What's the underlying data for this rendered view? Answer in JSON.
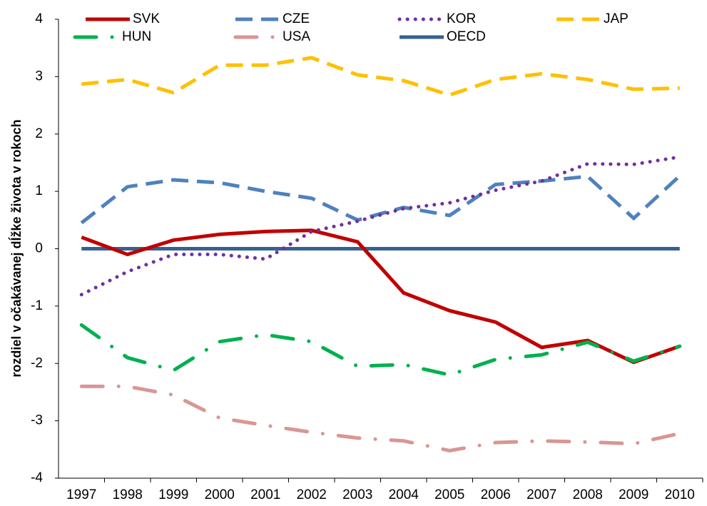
{
  "chart_data": {
    "type": "line",
    "y_label": "rozdiel v očakávanej dĺžke života v rokoch",
    "categories": [
      "1997",
      "1998",
      "1999",
      "2000",
      "2001",
      "2002",
      "2003",
      "2004",
      "2005",
      "2006",
      "2007",
      "2008",
      "2009",
      "2010"
    ],
    "ylim": [
      -4,
      4
    ],
    "yticks": [
      -4,
      -3,
      -2,
      -1,
      0,
      1,
      2,
      3,
      4
    ],
    "grid": false,
    "series": [
      {
        "name": "SVK",
        "color": "#c00000",
        "dash": "solid",
        "values": [
          0.2,
          -0.1,
          0.15,
          0.25,
          0.3,
          0.32,
          0.12,
          -0.77,
          -1.08,
          -1.28,
          -1.72,
          -1.6,
          -1.98,
          -1.7
        ]
      },
      {
        "name": "CZE",
        "color": "#4f81bd",
        "dash": "dashed",
        "values": [
          0.45,
          1.08,
          1.2,
          1.15,
          1.0,
          0.88,
          0.5,
          0.72,
          0.58,
          1.12,
          1.18,
          1.26,
          0.53,
          1.27
        ]
      },
      {
        "name": "KOR",
        "color": "#7030a0",
        "dash": "dotted",
        "values": [
          -0.8,
          -0.4,
          -0.1,
          -0.1,
          -0.18,
          0.3,
          0.48,
          0.7,
          0.8,
          1.02,
          1.18,
          1.48,
          1.47,
          1.6
        ]
      },
      {
        "name": "JAP",
        "color": "#ffc000",
        "dash": "dashed",
        "values": [
          2.87,
          2.95,
          2.72,
          3.2,
          3.2,
          3.33,
          3.03,
          2.93,
          2.68,
          2.95,
          3.05,
          2.95,
          2.78,
          2.8
        ]
      },
      {
        "name": "HUN",
        "color": "#00b050",
        "dash": "dash-dot",
        "values": [
          -1.33,
          -1.9,
          -2.12,
          -1.62,
          -1.5,
          -1.62,
          -2.05,
          -2.02,
          -2.2,
          -1.93,
          -1.85,
          -1.63,
          -1.96,
          -1.7
        ]
      },
      {
        "name": "USA",
        "color": "#d99694",
        "dash": "dash-dot",
        "values": [
          -2.4,
          -2.4,
          -2.55,
          -2.95,
          -3.08,
          -3.2,
          -3.3,
          -3.35,
          -3.52,
          -3.38,
          -3.35,
          -3.37,
          -3.4,
          -3.22
        ]
      },
      {
        "name": "OECD",
        "color": "#376092",
        "dash": "solid",
        "values": [
          0,
          0,
          0,
          0,
          0,
          0,
          0,
          0,
          0,
          0,
          0,
          0,
          0,
          0
        ]
      }
    ]
  }
}
